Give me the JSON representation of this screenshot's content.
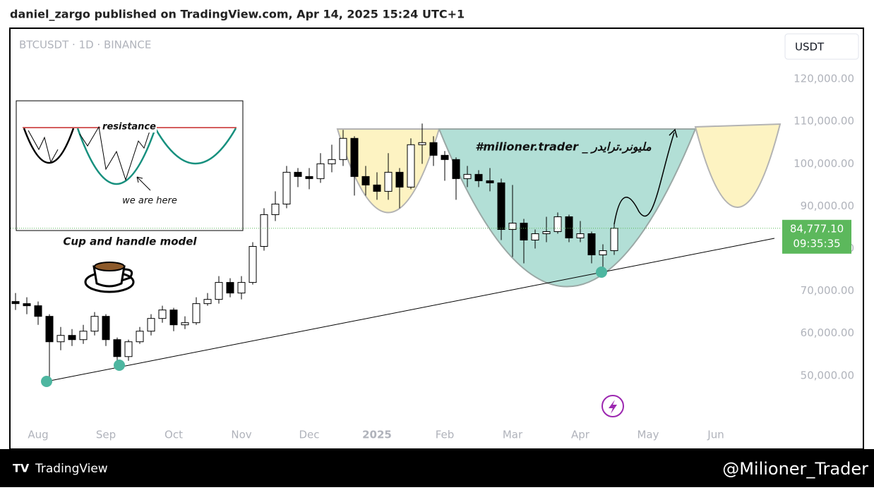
{
  "header": {
    "title": "daniel_zargo published on TradingView.com, Apr 14, 2025 15:24 UTC+1"
  },
  "footer": {
    "brand": "TradingView",
    "author": "@Milioner_Trader"
  },
  "annotations": {
    "inset_resistance": "resistance",
    "inset_pointer": "we are here",
    "model_title": "Cup and handle model",
    "signature": "#milioner.trader _ ملیونر.ترایدر"
  },
  "chart_data": {
    "type": "candlestick",
    "title": "BTCUSDT · 1D · BINANCE",
    "y_axis_label": "USDT",
    "categories": [
      null,
      null,
      "Aug",
      null,
      null,
      null,
      null,
      null,
      "Sep",
      null,
      null,
      null,
      null,
      null,
      "Oct",
      null,
      null,
      null,
      null,
      null,
      "Nov",
      null,
      null,
      null,
      null,
      null,
      "Dec",
      null,
      null,
      null,
      null,
      null,
      "2025",
      null,
      null,
      null,
      null,
      null,
      "Feb",
      null,
      null,
      null,
      null,
      null,
      "Mar",
      null,
      null,
      null,
      null,
      null,
      "Apr",
      null,
      null,
      null,
      null,
      null,
      "May",
      null,
      null,
      null,
      null,
      null,
      "Jun"
    ],
    "open": [
      67500,
      67000,
      66500,
      64000,
      58000,
      59500,
      58500,
      60500,
      64000,
      58500,
      54500,
      58000,
      60500,
      63500,
      65500,
      62000,
      62500,
      67000,
      68000,
      72000,
      69500,
      72000,
      80500,
      88000,
      90500,
      98000,
      97000,
      96500,
      100000,
      101000,
      106000,
      97000,
      95000,
      93500,
      98000,
      94500,
      104500,
      105000,
      102000,
      101000,
      96500,
      97500,
      96000,
      95500,
      84500,
      86000,
      82000,
      83500,
      84000,
      87500,
      82500,
      83500,
      78500,
      79500,
      null,
      null,
      null,
      null,
      null,
      null,
      null,
      null,
      null
    ],
    "high": [
      69500,
      68500,
      67500,
      64500,
      61500,
      61000,
      62000,
      65000,
      64500,
      59000,
      58500,
      61500,
      64500,
      66500,
      66000,
      64000,
      68500,
      69500,
      73500,
      73000,
      73500,
      81500,
      89500,
      93500,
      99500,
      99000,
      99000,
      102500,
      104500,
      108000,
      106500,
      99500,
      98000,
      102500,
      99000,
      106000,
      109500,
      106500,
      103000,
      101500,
      99500,
      98500,
      99000,
      96500,
      95000,
      87000,
      84500,
      87500,
      88500,
      88000,
      86500,
      84000,
      81000,
      86000,
      null,
      null,
      null,
      null,
      null,
      null,
      null,
      null,
      null
    ],
    "low": [
      65500,
      64500,
      62000,
      49500,
      56000,
      57000,
      57500,
      59500,
      57000,
      52500,
      53500,
      57500,
      59500,
      62500,
      60500,
      61000,
      62000,
      66500,
      67000,
      68500,
      68000,
      71500,
      79500,
      86500,
      89500,
      94500,
      94000,
      95500,
      98000,
      99500,
      92500,
      92500,
      91500,
      91500,
      89500,
      94000,
      100000,
      99500,
      96000,
      91500,
      94500,
      94500,
      93500,
      82000,
      78000,
      76500,
      80000,
      81500,
      83500,
      81500,
      81500,
      76500,
      74500,
      78500,
      null,
      null,
      null,
      null,
      null,
      null,
      null,
      null,
      null
    ],
    "close": [
      67000,
      66500,
      64000,
      58000,
      59500,
      58500,
      60500,
      64000,
      58500,
      54500,
      58000,
      60500,
      63500,
      65500,
      62000,
      62500,
      67000,
      68000,
      72000,
      69500,
      72000,
      80500,
      88000,
      90500,
      98000,
      97000,
      96500,
      100000,
      101000,
      106000,
      97000,
      95000,
      93500,
      98000,
      94500,
      104500,
      105000,
      102000,
      101000,
      96500,
      97500,
      96000,
      95500,
      84500,
      86000,
      82000,
      83500,
      84000,
      87500,
      82500,
      83500,
      78500,
      79500,
      84777.1,
      null,
      null,
      null,
      null,
      null,
      null,
      null,
      null,
      null
    ],
    "color_up": "#ffffff",
    "color_down": "#000000",
    "ylim": [
      32833,
      131833
    ],
    "yticks": [
      {
        "value": 50000,
        "label": "50,000.00"
      },
      {
        "value": 60000,
        "label": "60,000.00"
      },
      {
        "value": 70000,
        "label": "70,000.00"
      },
      {
        "value": 80000,
        "label": "80,000.00"
      },
      {
        "value": 90000,
        "label": "90,000.00"
      },
      {
        "value": 100000,
        "label": "100,000.00"
      },
      {
        "value": 110000,
        "label": "110,000.00"
      },
      {
        "value": 120000,
        "label": "120,000.00"
      }
    ],
    "last_price": {
      "value": 84777.1,
      "label": "84,777.10"
    },
    "countdown": "09:35:35",
    "last_price_color": "#5cb85c",
    "grid": false
  }
}
